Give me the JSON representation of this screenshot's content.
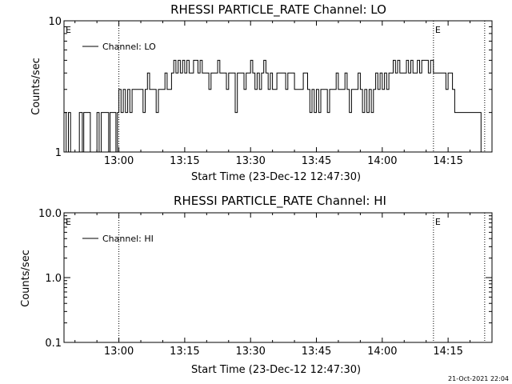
{
  "footer": {
    "timestamp": "21-Oct-2021 22:04"
  },
  "chart_data": [
    {
      "type": "line",
      "title": "RHESSI PARTICLE_RATE Channel: LO",
      "xlabel": "Start Time (23-Dec-12 12:47:30)",
      "ylabel": "Counts/sec",
      "yscale": "log",
      "ylim": [
        1,
        10
      ],
      "xlim": [
        "12:47:30",
        "14:25:00"
      ],
      "y_ticks": [
        "1",
        "10"
      ],
      "x_ticks": [
        "13:00",
        "13:15",
        "13:30",
        "13:45",
        "14:00",
        "14:15"
      ],
      "legend": {
        "label": "Channel: LO",
        "position": "top-left"
      },
      "markers": [
        {
          "time": "12:47:30",
          "label": "E"
        },
        {
          "time": "13:00:00",
          "label": ""
        },
        {
          "time": "14:11:40",
          "label": "E"
        },
        {
          "time": "14:23:20",
          "label": ""
        }
      ],
      "series": [
        {
          "name": "Channel: LO",
          "points": [
            [
              "12:47:30",
              2
            ],
            [
              "12:48:00",
              1
            ],
            [
              "12:48:30",
              2
            ],
            [
              "12:49:00",
              1
            ],
            [
              "12:50:00",
              1
            ],
            [
              "12:51:00",
              2
            ],
            [
              "12:51:40",
              1
            ],
            [
              "12:52:00",
              2
            ],
            [
              "12:53:00",
              2
            ],
            [
              "12:53:30",
              1
            ],
            [
              "12:54:30",
              1
            ],
            [
              "12:55:00",
              2
            ],
            [
              "12:55:30",
              1
            ],
            [
              "12:56:00",
              2
            ],
            [
              "12:57:00",
              2
            ],
            [
              "12:57:40",
              1
            ],
            [
              "12:58:00",
              2
            ],
            [
              "12:59:00",
              2
            ],
            [
              "12:59:20",
              1
            ],
            [
              "12:59:40",
              2
            ],
            [
              "13:00:00",
              3
            ],
            [
              "13:00:30",
              2
            ],
            [
              "13:01:00",
              3
            ],
            [
              "13:01:30",
              2
            ],
            [
              "13:02:00",
              3
            ],
            [
              "13:02:30",
              2
            ],
            [
              "13:03:00",
              3
            ],
            [
              "13:04:00",
              3
            ],
            [
              "13:05:00",
              3
            ],
            [
              "13:05:30",
              2
            ],
            [
              "13:06:00",
              3
            ],
            [
              "13:06:30",
              4
            ],
            [
              "13:07:00",
              3
            ],
            [
              "13:08:00",
              3
            ],
            [
              "13:08:30",
              2
            ],
            [
              "13:09:00",
              3
            ],
            [
              "13:10:00",
              3
            ],
            [
              "13:10:30",
              4
            ],
            [
              "13:11:00",
              3
            ],
            [
              "13:12:00",
              4
            ],
            [
              "13:12:30",
              5
            ],
            [
              "13:13:00",
              4
            ],
            [
              "13:13:30",
              5
            ],
            [
              "13:14:00",
              4
            ],
            [
              "13:14:30",
              5
            ],
            [
              "13:15:00",
              4
            ],
            [
              "13:15:30",
              5
            ],
            [
              "13:16:00",
              4
            ],
            [
              "13:17:00",
              5
            ],
            [
              "13:18:00",
              4
            ],
            [
              "13:18:30",
              5
            ],
            [
              "13:19:00",
              4
            ],
            [
              "13:20:00",
              4
            ],
            [
              "13:20:30",
              3
            ],
            [
              "13:21:00",
              4
            ],
            [
              "13:22:00",
              4
            ],
            [
              "13:22:30",
              5
            ],
            [
              "13:23:00",
              4
            ],
            [
              "13:24:00",
              4
            ],
            [
              "13:24:30",
              3
            ],
            [
              "13:25:00",
              4
            ],
            [
              "13:26:00",
              4
            ],
            [
              "13:26:30",
              2
            ],
            [
              "13:27:00",
              4
            ],
            [
              "13:28:00",
              4
            ],
            [
              "13:28:30",
              3
            ],
            [
              "13:29:00",
              4
            ],
            [
              "13:30:00",
              5
            ],
            [
              "13:30:30",
              4
            ],
            [
              "13:31:00",
              3
            ],
            [
              "13:31:30",
              4
            ],
            [
              "13:32:00",
              3
            ],
            [
              "13:32:30",
              4
            ],
            [
              "13:33:00",
              5
            ],
            [
              "13:33:30",
              4
            ],
            [
              "13:34:00",
              3
            ],
            [
              "13:34:30",
              4
            ],
            [
              "13:35:00",
              3
            ],
            [
              "13:36:00",
              4
            ],
            [
              "13:37:00",
              4
            ],
            [
              "13:38:00",
              3
            ],
            [
              "13:38:30",
              4
            ],
            [
              "13:39:00",
              4
            ],
            [
              "13:40:00",
              3
            ],
            [
              "13:41:00",
              3
            ],
            [
              "13:42:00",
              4
            ],
            [
              "13:43:00",
              3
            ],
            [
              "13:43:30",
              2
            ],
            [
              "13:44:00",
              3
            ],
            [
              "13:44:30",
              2
            ],
            [
              "13:45:00",
              3
            ],
            [
              "13:45:30",
              2
            ],
            [
              "13:46:00",
              3
            ],
            [
              "13:47:00",
              3
            ],
            [
              "13:47:30",
              2
            ],
            [
              "13:48:00",
              3
            ],
            [
              "13:49:00",
              3
            ],
            [
              "13:49:30",
              4
            ],
            [
              "13:50:00",
              3
            ],
            [
              "13:51:00",
              3
            ],
            [
              "13:51:30",
              4
            ],
            [
              "13:52:00",
              3
            ],
            [
              "13:52:30",
              2
            ],
            [
              "13:53:00",
              3
            ],
            [
              "13:54:00",
              3
            ],
            [
              "13:54:30",
              4
            ],
            [
              "13:55:00",
              3
            ],
            [
              "13:55:30",
              2
            ],
            [
              "13:56:00",
              3
            ],
            [
              "13:56:30",
              2
            ],
            [
              "13:57:00",
              3
            ],
            [
              "13:57:30",
              2
            ],
            [
              "13:58:00",
              3
            ],
            [
              "13:58:30",
              4
            ],
            [
              "13:59:00",
              3
            ],
            [
              "13:59:30",
              4
            ],
            [
              "14:00:00",
              3
            ],
            [
              "14:00:30",
              4
            ],
            [
              "14:01:00",
              3
            ],
            [
              "14:01:30",
              4
            ],
            [
              "14:02:00",
              4
            ],
            [
              "14:02:30",
              5
            ],
            [
              "14:03:00",
              4
            ],
            [
              "14:03:30",
              5
            ],
            [
              "14:04:00",
              4
            ],
            [
              "14:05:00",
              4
            ],
            [
              "14:05:30",
              5
            ],
            [
              "14:06:00",
              4
            ],
            [
              "14:06:30",
              5
            ],
            [
              "14:07:00",
              4
            ],
            [
              "14:08:00",
              5
            ],
            [
              "14:08:30",
              4
            ],
            [
              "14:09:00",
              5
            ],
            [
              "14:10:00",
              5
            ],
            [
              "14:10:30",
              4
            ],
            [
              "14:11:00",
              5
            ],
            [
              "14:11:40",
              4
            ],
            [
              "14:12:00",
              4
            ],
            [
              "14:13:00",
              4
            ],
            [
              "14:14:00",
              4
            ],
            [
              "14:14:30",
              3
            ],
            [
              "14:15:00",
              4
            ],
            [
              "14:16:00",
              3
            ],
            [
              "14:16:30",
              2
            ],
            [
              "14:17:00",
              2
            ],
            [
              "14:20:00",
              2
            ],
            [
              "14:22:00",
              2
            ],
            [
              "14:22:30",
              1
            ]
          ]
        }
      ]
    },
    {
      "type": "line",
      "title": "RHESSI PARTICLE_RATE Channel: HI",
      "xlabel": "Start Time (23-Dec-12 12:47:30)",
      "ylabel": "Counts/sec",
      "yscale": "log",
      "ylim": [
        0.1,
        10
      ],
      "xlim": [
        "12:47:30",
        "14:25:00"
      ],
      "y_ticks": [
        "0.1",
        "1.0",
        "10.0"
      ],
      "x_ticks": [
        "13:00",
        "13:15",
        "13:30",
        "13:45",
        "14:00",
        "14:15"
      ],
      "legend": {
        "label": "Channel: HI",
        "position": "top-left"
      },
      "markers": [
        {
          "time": "12:47:30",
          "label": "E"
        },
        {
          "time": "13:00:00",
          "label": ""
        },
        {
          "time": "14:11:40",
          "label": "E"
        },
        {
          "time": "14:23:20",
          "label": ""
        }
      ],
      "series": [
        {
          "name": "Channel: HI",
          "points": []
        }
      ]
    }
  ]
}
